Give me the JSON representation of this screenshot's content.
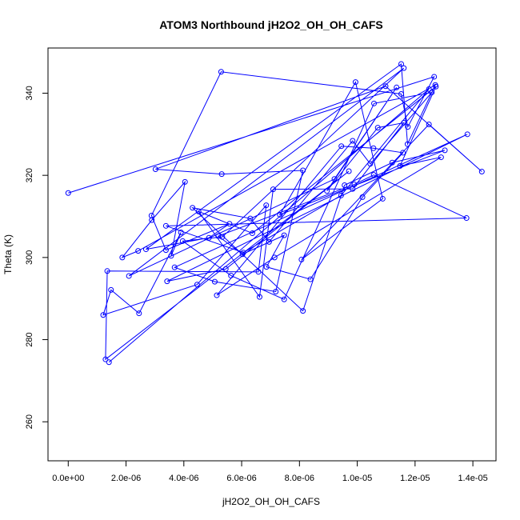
{
  "chart_data": {
    "type": "line",
    "title": "ATOM3 Northbound jH2O2_OH_OH_CAFS",
    "xlabel": "jH2O2_OH_OH_CAFS",
    "ylabel": "Theta (K)",
    "xlim": [
      -7e-07,
      1.48e-05
    ],
    "ylim": [
      250.5,
      351
    ],
    "x_ticks": [
      0,
      2e-06,
      4e-06,
      6e-06,
      8e-06,
      1e-05,
      1.2e-05,
      1.4e-05
    ],
    "x_tick_labels": [
      "0.0e+00",
      "2.0e-06",
      "4.0e-06",
      "6.0e-06",
      "8.0e-06",
      "1.0e-05",
      "1.2e-05",
      "1.4e-05"
    ],
    "y_ticks": [
      260,
      280,
      300,
      320,
      340
    ],
    "y_tick_labels": [
      "260",
      "280",
      "300",
      "320",
      "340"
    ],
    "grid": false,
    "series_color": "#0000ff",
    "series": [
      {
        "x": [
          0.0,
          1.266e-05,
          1.175e-05,
          1.152e-05,
          5.29e-06,
          2.88e-06,
          3.38e-06,
          5.58e-06,
          4.87e-06,
          2.69e-06,
          1.152e-05,
          1.174e-05,
          1.27e-05,
          2.42e-06,
          1.87e-06,
          2.89e-06,
          4.04e-06,
          3.56e-06,
          3.9e-06,
          2.45e-06,
          1.48e-06,
          1.21e-06,
          4.46e-06,
          6.85e-06,
          6.58e-06,
          1.35e-06,
          1.29e-06,
          9.71e-06,
          5.45e-06,
          3.42e-06,
          1.381e-05,
          3.68e-06,
          5.07e-06,
          7.18e-06,
          8.12e-06,
          5.31e-06,
          3.02e-06,
          1.098e-05,
          1.431e-05,
          1.248e-05,
          8.07e-06,
          1.088e-05,
          9.94e-06,
          7.32e-06,
          1.303e-05,
          1.121e-05,
          9.56e-06,
          8.12e-06,
          4.3e-06,
          6.3e-06,
          6.95e-06,
          9.84e-06,
          1.045e-05,
          1.258e-05,
          1.058e-05,
          7.47e-06,
          5.63e-06,
          3.96e-06,
          5.33e-06,
          1.161e-05,
          2.1e-06,
          9.21e-06,
          1.136e-05,
          8.95e-06,
          1.071e-05,
          1.161e-05,
          9.84e-06,
          7.09e-06,
          6.62e-06,
          4.51e-06,
          6.37e-06,
          1.272e-05,
          1.148e-05,
          1.29e-05,
          7.14e-06,
          5.14e-06,
          9.45e-06,
          1.056e-05,
          1.158e-05,
          1.018e-05,
          8.38e-06,
          6.86e-06,
          7.47e-06,
          6.03e-06,
          5.19e-06,
          9.9e-06,
          1.057e-05,
          1.378e-05,
          3.38e-06,
          6.06e-06,
          9.44e-06,
          1.248e-05,
          1.41e-06
        ],
        "y": [
          315.7,
          344.0,
          331.8,
          339.8,
          345.2,
          310.2,
          301.8,
          308.2,
          304.8,
          302.0,
          347.1,
          327.6,
          342.0,
          301.6,
          300.0,
          309.1,
          318.4,
          300.4,
          306.1,
          286.4,
          292.1,
          286.0,
          293.4,
          312.7,
          296.5,
          296.7,
          275.2,
          321.0,
          297.2,
          294.2,
          330.0,
          297.6,
          294.1,
          291.7,
          321.2,
          320.3,
          321.5,
          341.7,
          320.9,
          332.4,
          299.5,
          314.3,
          342.7,
          310.4,
          326.1,
          323.1,
          317.6,
          287.0,
          312.1,
          309.5,
          303.8,
          328.4,
          322.8,
          340.2,
          337.5,
          289.8,
          295.6,
          304.0,
          305.0,
          346.1,
          295.5,
          319.1,
          341.4,
          316.2,
          331.6,
          332.8,
          316.7,
          316.6,
          290.4,
          311.2,
          305.9,
          341.6,
          322.3,
          324.4,
          300.0,
          290.8,
          327.1,
          326.6,
          325.5,
          314.7,
          294.7,
          297.7,
          305.4,
          300.8,
          305.2,
          317.8,
          320.1,
          309.6,
          307.7,
          301.2,
          315.1,
          341.0,
          274.5
        ]
      }
    ]
  }
}
